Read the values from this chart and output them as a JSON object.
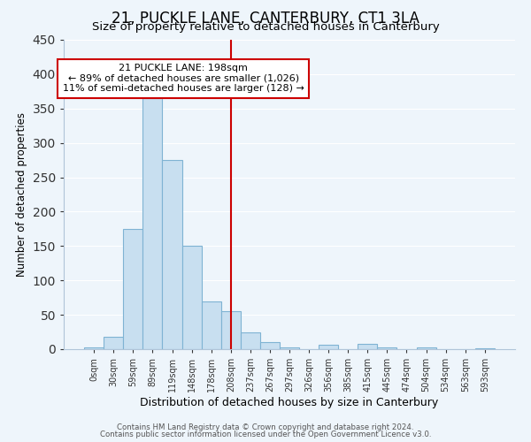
{
  "title": "21, PUCKLE LANE, CANTERBURY, CT1 3LA",
  "subtitle": "Size of property relative to detached houses in Canterbury",
  "xlabel": "Distribution of detached houses by size in Canterbury",
  "ylabel": "Number of detached properties",
  "bar_labels": [
    "0sqm",
    "30sqm",
    "59sqm",
    "89sqm",
    "119sqm",
    "148sqm",
    "178sqm",
    "208sqm",
    "237sqm",
    "267sqm",
    "297sqm",
    "326sqm",
    "356sqm",
    "385sqm",
    "415sqm",
    "445sqm",
    "474sqm",
    "504sqm",
    "534sqm",
    "563sqm",
    "593sqm"
  ],
  "bar_values": [
    2,
    18,
    175,
    365,
    275,
    150,
    70,
    55,
    24,
    10,
    2,
    0,
    6,
    0,
    8,
    2,
    0,
    2,
    0,
    0,
    1
  ],
  "bar_color": "#c8dff0",
  "bar_edge_color": "#7fb3d3",
  "property_line_x": 7,
  "property_line_color": "#cc0000",
  "annotation_line1": "21 PUCKLE LANE: 198sqm",
  "annotation_line2": "← 89% of detached houses are smaller (1,026)",
  "annotation_line3": "11% of semi-detached houses are larger (128) →",
  "annotation_box_color": "#ffffff",
  "annotation_box_edge": "#cc0000",
  "footer_line1": "Contains HM Land Registry data © Crown copyright and database right 2024.",
  "footer_line2": "Contains public sector information licensed under the Open Government Licence v3.0.",
  "background_color": "#eef5fb",
  "ylim": [
    0,
    450
  ],
  "grid_color": "#ffffff",
  "title_fontsize": 12,
  "subtitle_fontsize": 9.5,
  "ylabel_fontsize": 8.5,
  "xlabel_fontsize": 9
}
